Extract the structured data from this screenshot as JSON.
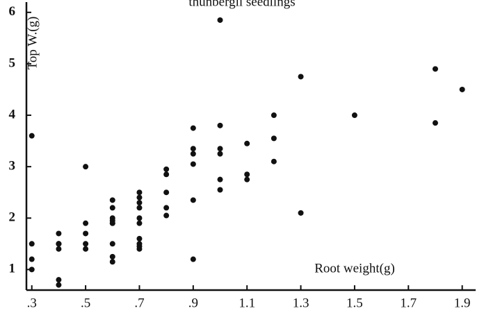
{
  "chart_data": {
    "type": "scatter",
    "title": "thunbergii seedlings",
    "x_label": "Root weight(g)",
    "y_label": "Top W.(g)",
    "series": [
      {
        "color": "#111111",
        "x": [
          0.3,
          0.3,
          0.3,
          0.3,
          0.4,
          0.4,
          0.4,
          0.4,
          0.4,
          0.4,
          0.4,
          0.5,
          0.5,
          0.5,
          0.5,
          0.5,
          0.6,
          0.6,
          0.6,
          0.6,
          0.6,
          0.6,
          0.6,
          0.6,
          0.6,
          0.7,
          0.7,
          0.7,
          0.7,
          0.7,
          0.7,
          0.7,
          0.7,
          0.7,
          0.7,
          0.8,
          0.8,
          0.8,
          0.8,
          0.8,
          0.9,
          0.9,
          0.9,
          0.9,
          0.9,
          0.9,
          1.0,
          1.0,
          1.0,
          1.0,
          1.0,
          1.0,
          1.1,
          1.1,
          1.1,
          1.2,
          1.2,
          1.2,
          1.3,
          1.3,
          1.5,
          1.8,
          1.8,
          1.9
        ],
        "y": [
          3.6,
          1.5,
          1.2,
          1.0,
          1.7,
          1.5,
          1.5,
          1.5,
          1.4,
          0.8,
          0.7,
          3.0,
          1.9,
          1.7,
          1.5,
          1.4,
          2.35,
          2.2,
          2.0,
          1.95,
          1.9,
          1.9,
          1.5,
          1.25,
          1.15,
          2.5,
          2.4,
          2.3,
          2.2,
          2.0,
          1.9,
          1.6,
          1.5,
          1.45,
          1.4,
          2.95,
          2.85,
          2.5,
          2.2,
          2.05,
          3.75,
          3.35,
          3.25,
          3.05,
          2.35,
          1.2,
          5.85,
          3.8,
          3.35,
          3.25,
          2.75,
          2.55,
          3.45,
          2.85,
          2.75,
          4.0,
          3.55,
          3.1,
          4.75,
          2.1,
          4.0,
          4.9,
          3.85,
          4.5
        ]
      }
    ],
    "xlim": [
      0.28,
      1.95
    ],
    "ylim": [
      0.6,
      6.2
    ],
    "xticks": [
      {
        "value": 0.3,
        "label": ".3"
      },
      {
        "value": 0.5,
        "label": ".5"
      },
      {
        "value": 0.7,
        "label": ".7"
      },
      {
        "value": 0.9,
        "label": ".9"
      },
      1.1,
      1.3,
      1.5,
      1.7,
      1.9
    ],
    "yticks": [
      1,
      2,
      3,
      4,
      5,
      6
    ]
  }
}
